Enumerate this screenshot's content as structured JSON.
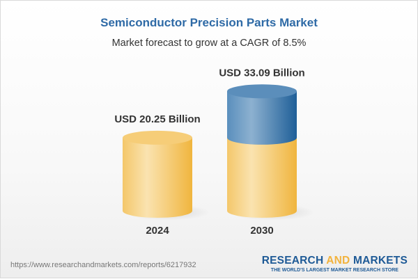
{
  "header": {
    "title": "Semiconductor Precision Parts Market",
    "subtitle": "Market forecast to grow at a CAGR of 8.5%"
  },
  "chart_data": {
    "type": "bar",
    "style": "3d-cylinder",
    "categories": [
      "2024",
      "2030"
    ],
    "values": [
      20.25,
      33.09
    ],
    "data_labels": [
      "USD 20.25 Billion",
      "USD 33.09 Billion"
    ],
    "title": "Semiconductor Precision Parts Market",
    "subtitle": "Market forecast to grow at a CAGR of 8.5%",
    "grid": false,
    "colors": {
      "base": "#f2c25a",
      "growth": "#3f7bb0"
    }
  },
  "footer": {
    "url": "https://www.researchandmarkets.com/reports/6217932",
    "logo_part1": "RESEARCH ",
    "logo_part2": "AND",
    "logo_part3": " MARKETS",
    "tagline": "THE WORLD'S LARGEST MARKET RESEARCH STORE"
  }
}
